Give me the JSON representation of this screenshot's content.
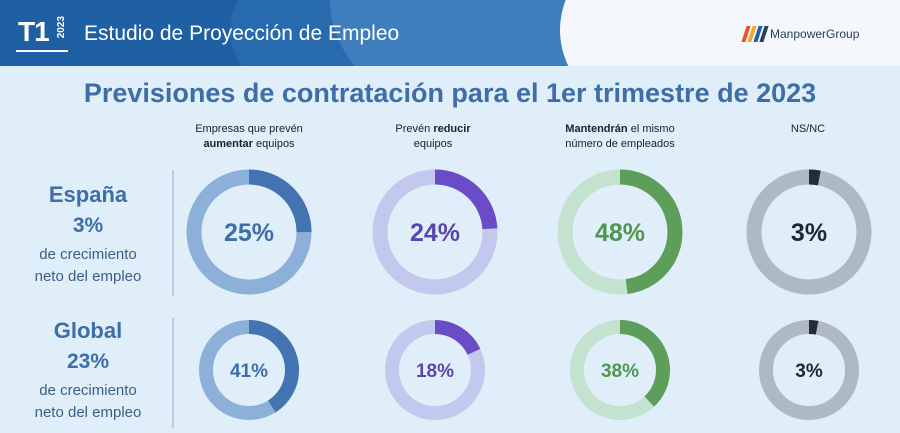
{
  "header": {
    "badge": "T1",
    "badge_year": "2023",
    "title": "Estudio de Proyección de Empleo",
    "brand": "ManpowerGroup"
  },
  "title": "Previsiones de contratación para el 1er trimestre de 2023",
  "columns": [
    {
      "lines": [
        [
          "Empresas que prevén",
          ""
        ],
        [
          "aumentar",
          " equipos"
        ]
      ]
    },
    {
      "lines": [
        [
          "Prevén ",
          "reducir"
        ],
        [
          "equipos",
          ""
        ]
      ]
    },
    {
      "lines": [
        [
          "Mantendrán",
          " el mismo"
        ],
        [
          "número de empleados",
          ""
        ]
      ]
    },
    {
      "lines": [
        [
          "NS/NC",
          ""
        ]
      ]
    }
  ],
  "rows": [
    {
      "name": "España",
      "value": "3%",
      "sub1": "de crecimiento",
      "sub2": "neto del empleo"
    },
    {
      "name": "Global",
      "value": "23%",
      "sub1": "de crecimiento",
      "sub2": "neto del empleo"
    }
  ],
  "colors": {
    "aumentar": {
      "fill": "#4373b0",
      "track": "#8cb0d8",
      "text": "#3d6ea8"
    },
    "reducir": {
      "fill": "#6a4cc6",
      "track": "#c3c9ee",
      "text": "#5b45b0"
    },
    "mantener": {
      "fill": "#5d9e5a",
      "track": "#c3e2cf",
      "text": "#4f9650"
    },
    "nsnc": {
      "fill": "#252b38",
      "track": "#aeb9c4",
      "text": "#1f2733"
    }
  },
  "chart_data": {
    "type": "donut",
    "title": "Previsiones de contratación para el 1er trimestre de 2023",
    "categories": [
      "aumentar",
      "reducir",
      "mantener",
      "nsnc"
    ],
    "series": [
      {
        "name": "España",
        "values": [
          25,
          24,
          48,
          3
        ],
        "labels": [
          "25%",
          "24%",
          "48%",
          "3%"
        ]
      },
      {
        "name": "Global",
        "values": [
          41,
          18,
          38,
          3
        ],
        "labels": [
          "41%",
          "18%",
          "38%",
          "3%"
        ]
      }
    ]
  }
}
